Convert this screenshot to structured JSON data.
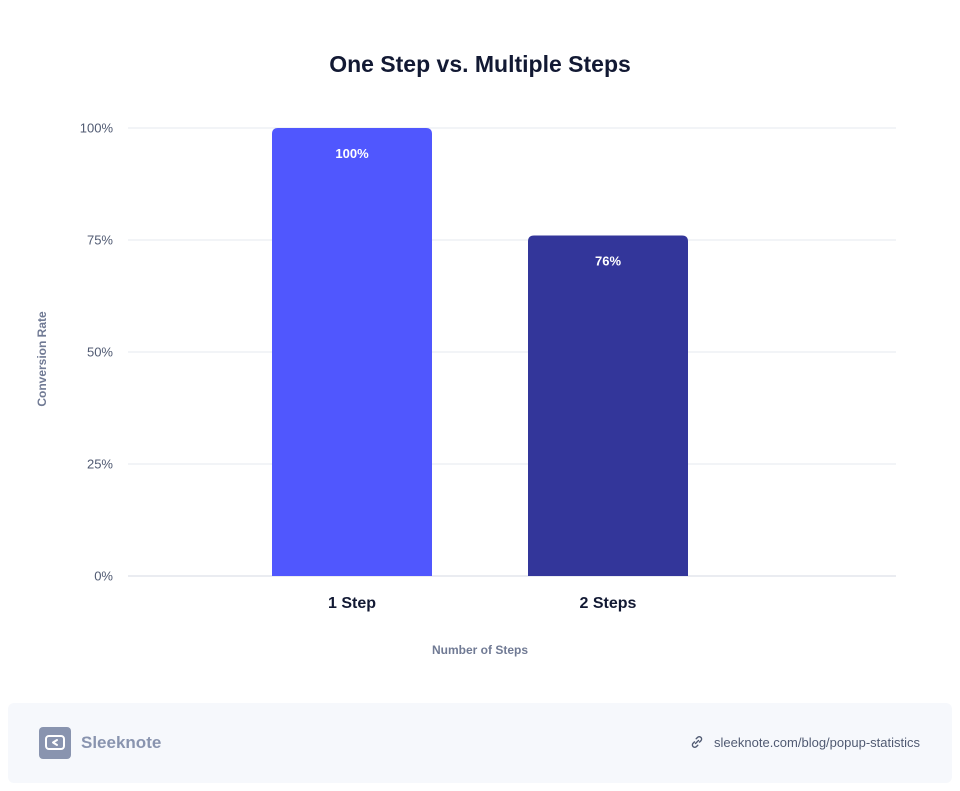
{
  "chart_data": {
    "type": "bar",
    "title": "One Step vs. Multiple Steps",
    "xlabel": "Number of Steps",
    "ylabel": "Conversion Rate",
    "categories": [
      "1 Step",
      "2 Steps"
    ],
    "values": [
      100,
      76
    ],
    "data_labels": [
      "100%",
      "76%"
    ],
    "ylim": [
      0,
      100
    ],
    "yticks": [
      0,
      25,
      50,
      75,
      100
    ],
    "ytick_labels": [
      "0%",
      "25%",
      "50%",
      "75%",
      "100%"
    ],
    "grid": true,
    "bar_colors": [
      "#5057fe",
      "#33369a"
    ]
  },
  "footer": {
    "brand_name": "Sleeknote",
    "source_url": "sleeknote.com/blog/popup-statistics",
    "brand_icon": "sleeknote-logo-icon",
    "link_icon": "link-icon"
  }
}
